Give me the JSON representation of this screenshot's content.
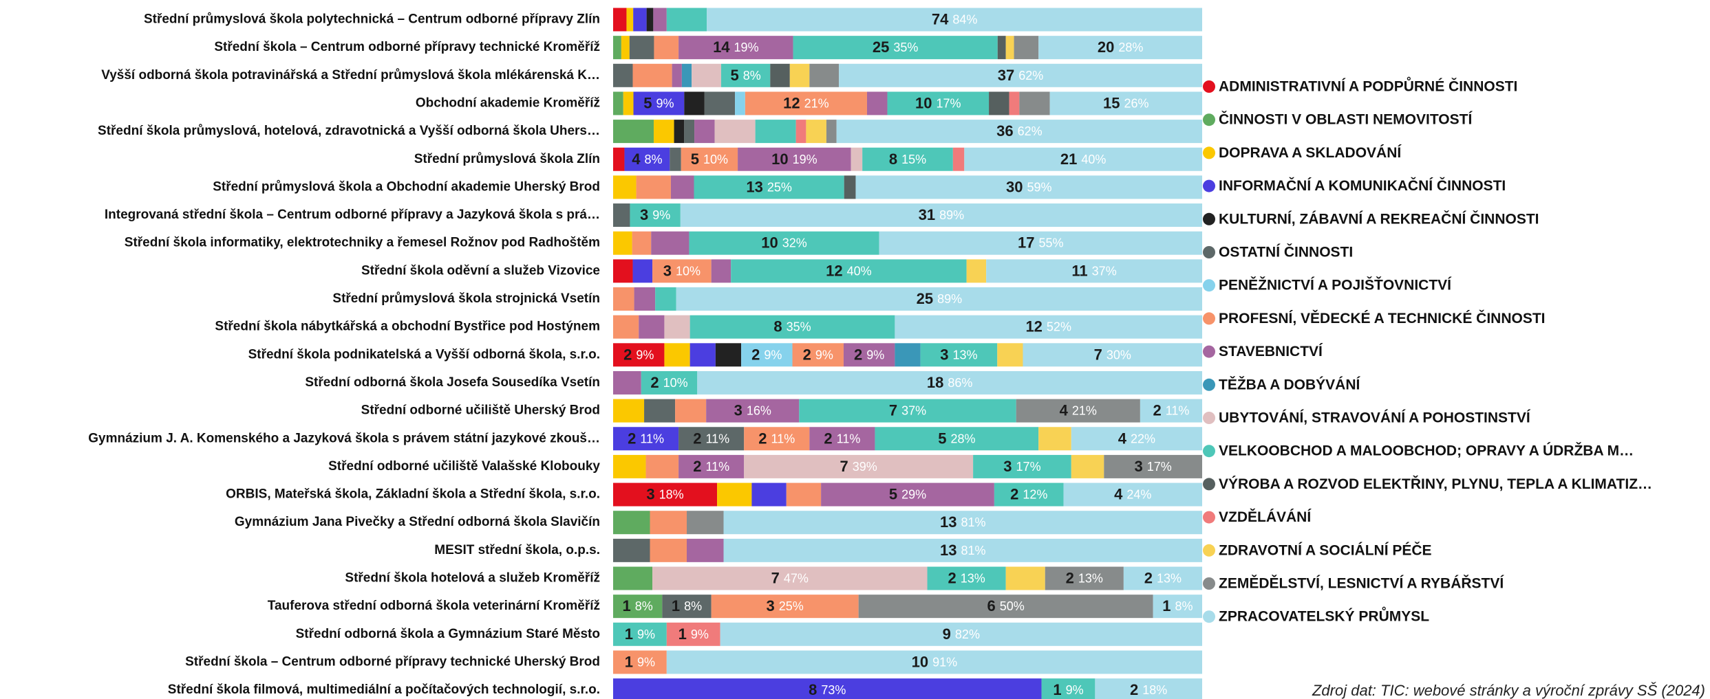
{
  "chart_data": {
    "type": "stacked_share_bar",
    "source": "Zdroj dat: TIC: webové stránky a výroční zprávy SŠ (2024)",
    "categories": [
      "Střední průmyslová škola polytechnická – Centrum odborné přípravy Zlín",
      "Střední škola – Centrum odborné přípravy technické Kroměříž",
      "Vyšší odborná škola potravinářská a Střední průmyslová škola mlékárenská K…",
      "Obchodní akademie Kroměříž",
      "Střední škola průmyslová, hotelová, zdravotnická a Vyšší odborná škola Uhers…",
      "Střední průmyslová škola Zlín",
      "Střední průmyslová škola a Obchodní akademie Uherský Brod",
      "Integrovaná střední škola – Centrum odborné přípravy a Jazyková škola s prá…",
      "Střední škola informatiky, elektrotechniky a řemesel Rožnov pod Radhoštěm",
      "Střední škola oděvní a služeb Vizovice",
      "Střední průmyslová škola strojnická Vsetín",
      "Střední škola nábytkářská a obchodní Bystřice pod Hostýnem",
      "Střední škola podnikatelská a Vyšší odborná škola, s.r.o.",
      "Střední odborná škola Josefa Sousedíka Vsetín",
      "Střední odborné učiliště Uherský Brod",
      "Gymnázium J. A. Komenského a Jazyková škola s právem státní jazykové zkouš…",
      "Střední odborné učiliště Valašské Klobouky",
      "ORBIS, Mateřská škola, Základní škola a Střední škola, s.r.o.",
      "Gymnázium Jana Pivečky a Střední odborná škola Slavičín",
      "MESIT střední škola, o.p.s.",
      "Střední škola hotelová a služeb Kroměříž",
      "Tauferova střední odborná škola veterinární Kroměříž",
      "Střední odborná škola a Gymnázium Staré Město",
      "Střední škola – Centrum odborné přípravy technické Uherský Brod",
      "Střední škola filmová, multimediální a počítačových technologií, s.r.o."
    ],
    "series": [
      {
        "name": "ADMINISTRATIVNÍ A PODPŮRNÉ ČINNOSTI",
        "color": "#e3101e",
        "values": [
          2,
          null,
          null,
          null,
          null,
          1,
          null,
          null,
          null,
          1,
          null,
          null,
          2,
          null,
          null,
          null,
          null,
          3,
          null,
          null,
          null,
          null,
          null,
          null,
          null
        ],
        "share_labels": [
          null,
          null,
          null,
          null,
          null,
          null,
          null,
          null,
          null,
          null,
          null,
          null,
          "9%",
          null,
          null,
          null,
          null,
          "18%",
          null,
          null,
          null,
          null,
          null,
          null,
          null
        ]
      },
      {
        "name": "ČINNOSTI V OBLASTI NEMOVITOSTÍ",
        "color": "#5fab5f",
        "values": [
          null,
          1,
          null,
          1,
          4,
          null,
          null,
          null,
          null,
          null,
          null,
          null,
          null,
          null,
          null,
          null,
          null,
          null,
          1,
          null,
          1,
          1,
          null,
          null,
          null
        ],
        "share_labels": [
          null,
          null,
          null,
          null,
          null,
          null,
          null,
          null,
          null,
          null,
          null,
          null,
          null,
          null,
          null,
          null,
          null,
          null,
          null,
          null,
          null,
          "8%",
          null,
          null,
          null
        ]
      },
      {
        "name": "DOPRAVA A SKLADOVÁNÍ",
        "color": "#fbc800",
        "values": [
          1,
          1,
          null,
          1,
          2,
          null,
          2,
          null,
          1,
          null,
          null,
          null,
          1,
          null,
          1,
          null,
          1,
          1,
          null,
          null,
          null,
          null,
          null,
          null,
          null
        ],
        "share_labels": [
          null,
          null,
          null,
          null,
          null,
          null,
          null,
          null,
          null,
          null,
          null,
          null,
          null,
          null,
          null,
          null,
          null,
          null,
          null,
          null,
          null,
          null,
          null,
          null,
          null
        ]
      },
      {
        "name": "INFORMAČNÍ A KOMUNIKAČNÍ ČINNOSTI",
        "color": "#4b3ee0",
        "values": [
          2,
          null,
          null,
          5,
          null,
          4,
          null,
          null,
          null,
          1,
          null,
          null,
          1,
          null,
          null,
          2,
          null,
          1,
          null,
          null,
          null,
          null,
          null,
          null,
          8
        ],
        "share_labels": [
          null,
          null,
          null,
          "9%",
          null,
          "8%",
          null,
          null,
          null,
          null,
          null,
          null,
          null,
          null,
          null,
          "11%",
          null,
          null,
          null,
          null,
          null,
          null,
          null,
          null,
          "73%"
        ]
      },
      {
        "name": "KULTURNÍ, ZÁBAVNÍ A REKREAČNÍ ČINNOSTI",
        "color": "#222222",
        "values": [
          1,
          null,
          null,
          2,
          1,
          null,
          null,
          null,
          null,
          null,
          null,
          null,
          1,
          null,
          null,
          null,
          null,
          null,
          null,
          null,
          null,
          null,
          null,
          null,
          null
        ],
        "share_labels": [
          null,
          null,
          null,
          null,
          null,
          null,
          null,
          null,
          null,
          null,
          null,
          null,
          null,
          null,
          null,
          null,
          null,
          null,
          null,
          null,
          null,
          null,
          null,
          null,
          null
        ]
      },
      {
        "name": "OSTATNÍ ČINNOSTI",
        "color": "#5d6868",
        "values": [
          null,
          3,
          2,
          3,
          1,
          1,
          null,
          1,
          null,
          null,
          null,
          null,
          null,
          null,
          1,
          2,
          null,
          null,
          null,
          1,
          null,
          1,
          null,
          null,
          null
        ],
        "share_labels": [
          null,
          null,
          null,
          null,
          null,
          null,
          null,
          null,
          null,
          null,
          null,
          null,
          null,
          null,
          null,
          "11%",
          null,
          null,
          null,
          null,
          null,
          "8%",
          null,
          null,
          null
        ]
      },
      {
        "name": "PENĚŽNICTVÍ A POJIŠŤOVNICTVÍ",
        "color": "#86d2ec",
        "values": [
          null,
          null,
          null,
          1,
          null,
          null,
          null,
          null,
          null,
          null,
          null,
          null,
          2,
          null,
          null,
          null,
          null,
          null,
          null,
          null,
          null,
          null,
          null,
          null,
          null
        ],
        "share_labels": [
          null,
          null,
          null,
          null,
          null,
          null,
          null,
          null,
          null,
          null,
          null,
          null,
          "9%",
          null,
          null,
          null,
          null,
          null,
          null,
          null,
          null,
          null,
          null,
          null,
          null
        ]
      },
      {
        "name": "PROFESNÍ, VĚDECKÉ A TECHNICKÉ ČINNOSTI",
        "color": "#f7936a",
        "values": [
          null,
          3,
          4,
          12,
          null,
          5,
          3,
          null,
          1,
          3,
          1,
          1,
          2,
          null,
          1,
          2,
          1,
          1,
          1,
          1,
          null,
          3,
          null,
          1,
          null
        ],
        "share_labels": [
          null,
          null,
          null,
          "21%",
          null,
          "10%",
          null,
          null,
          null,
          "10%",
          null,
          null,
          "9%",
          null,
          null,
          "11%",
          null,
          null,
          null,
          null,
          null,
          "25%",
          null,
          "9%",
          null
        ]
      },
      {
        "name": "STAVEBNICTVÍ",
        "color": "#a566a0",
        "values": [
          2,
          14,
          1,
          2,
          2,
          10,
          2,
          null,
          2,
          1,
          1,
          1,
          2,
          1,
          3,
          2,
          2,
          5,
          null,
          1,
          null,
          null,
          null,
          null,
          null
        ],
        "share_labels": [
          null,
          "19%",
          null,
          null,
          null,
          "19%",
          null,
          null,
          null,
          null,
          null,
          null,
          "9%",
          null,
          "16%",
          "11%",
          "11%",
          "29%",
          null,
          null,
          null,
          null,
          null,
          null,
          null
        ]
      },
      {
        "name": "TĚŽBA A DOBÝVÁNÍ",
        "color": "#3a97b8",
        "values": [
          null,
          null,
          1,
          null,
          null,
          null,
          null,
          null,
          null,
          null,
          null,
          null,
          1,
          null,
          null,
          null,
          null,
          null,
          null,
          null,
          null,
          null,
          null,
          null,
          null
        ],
        "share_labels": [
          null,
          null,
          null,
          null,
          null,
          null,
          null,
          null,
          null,
          null,
          null,
          null,
          null,
          null,
          null,
          null,
          null,
          null,
          null,
          null,
          null,
          null,
          null,
          null,
          null
        ]
      },
      {
        "name": "UBYTOVÁNÍ, STRAVOVÁNÍ A POHOSTINSTVÍ",
        "color": "#e0bfc0",
        "values": [
          null,
          null,
          3,
          null,
          4,
          1,
          null,
          null,
          null,
          null,
          null,
          1,
          null,
          null,
          null,
          null,
          7,
          null,
          null,
          null,
          7,
          null,
          null,
          null,
          null
        ],
        "share_labels": [
          null,
          null,
          null,
          null,
          null,
          null,
          null,
          null,
          null,
          null,
          null,
          null,
          null,
          null,
          null,
          null,
          "39%",
          null,
          null,
          null,
          "47%",
          null,
          null,
          null,
          null
        ]
      },
      {
        "name": "VELKOOBCHOD A MALOOBCHOD; OPRAVY A ÚDRŽBA M…",
        "color": "#4ec7b8",
        "values": [
          6,
          25,
          5,
          10,
          4,
          8,
          13,
          3,
          10,
          12,
          1,
          8,
          3,
          2,
          7,
          5,
          3,
          2,
          null,
          null,
          2,
          null,
          1,
          null,
          1
        ],
        "share_labels": [
          null,
          "35%",
          "8%",
          "17%",
          null,
          "15%",
          "25%",
          "9%",
          "32%",
          "40%",
          null,
          "35%",
          "13%",
          "10%",
          "37%",
          "28%",
          "17%",
          "12%",
          null,
          null,
          "13%",
          null,
          "9%",
          null,
          "9%"
        ]
      },
      {
        "name": "VÝROBA A ROZVOD ELEKTŘINY, PLYNU, TEPLA A KLIMATIZ…",
        "color": "#56605f",
        "values": [
          null,
          1,
          2,
          2,
          null,
          null,
          1,
          null,
          null,
          null,
          null,
          null,
          null,
          null,
          null,
          null,
          null,
          null,
          null,
          null,
          null,
          null,
          null,
          null,
          null
        ],
        "share_labels": [
          null,
          null,
          null,
          null,
          null,
          null,
          null,
          null,
          null,
          null,
          null,
          null,
          null,
          null,
          null,
          null,
          null,
          null,
          null,
          null,
          null,
          null,
          null,
          null,
          null
        ]
      },
      {
        "name": "VZDĚLÁVÁNÍ",
        "color": "#f07b7b",
        "values": [
          null,
          null,
          null,
          1,
          1,
          1,
          null,
          null,
          null,
          null,
          null,
          null,
          null,
          null,
          null,
          null,
          null,
          null,
          null,
          null,
          null,
          null,
          1,
          null,
          null
        ],
        "share_labels": [
          null,
          null,
          null,
          null,
          null,
          null,
          null,
          null,
          null,
          null,
          null,
          null,
          null,
          null,
          null,
          null,
          null,
          null,
          null,
          null,
          null,
          null,
          "9%",
          null,
          null
        ]
      },
      {
        "name": "ZDRAVOTNÍ A SOCIÁLNÍ PÉČE",
        "color": "#f8d254",
        "values": [
          null,
          1,
          2,
          null,
          2,
          null,
          null,
          null,
          null,
          1,
          null,
          null,
          1,
          null,
          null,
          1,
          1,
          null,
          null,
          null,
          1,
          null,
          null,
          null,
          null
        ],
        "share_labels": [
          null,
          null,
          null,
          null,
          null,
          null,
          null,
          null,
          null,
          null,
          null,
          null,
          null,
          null,
          null,
          null,
          null,
          null,
          null,
          null,
          null,
          null,
          null,
          null,
          null
        ]
      },
      {
        "name": "ZEMĚDĚLSTVÍ, LESNICTVÍ A RYBÁŘSTVÍ",
        "color": "#878b8b",
        "values": [
          null,
          3,
          3,
          3,
          1,
          null,
          null,
          null,
          null,
          null,
          null,
          null,
          null,
          null,
          4,
          null,
          3,
          null,
          1,
          null,
          2,
          6,
          null,
          null,
          null
        ],
        "share_labels": [
          null,
          null,
          null,
          null,
          null,
          null,
          null,
          null,
          null,
          null,
          null,
          null,
          null,
          null,
          "21%",
          null,
          "17%",
          null,
          null,
          null,
          "13%",
          "50%",
          null,
          null,
          null
        ]
      },
      {
        "name": "ZPRACOVATELSKÝ PRŮMYSL",
        "color": "#a8dcea",
        "values": [
          74,
          20,
          37,
          15,
          36,
          21,
          30,
          31,
          17,
          11,
          25,
          12,
          7,
          18,
          2,
          4,
          null,
          4,
          13,
          13,
          2,
          1,
          9,
          10,
          2
        ],
        "share_labels": [
          "84%",
          "28%",
          "62%",
          "26%",
          "62%",
          "40%",
          "59%",
          "89%",
          "55%",
          "37%",
          "89%",
          "52%",
          "30%",
          "86%",
          "11%",
          "22%",
          null,
          "24%",
          "81%",
          "81%",
          "13%",
          "8%",
          "82%",
          "91%",
          "18%"
        ]
      }
    ]
  }
}
